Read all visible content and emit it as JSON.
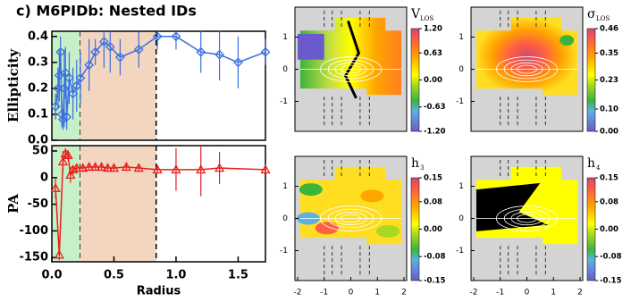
{
  "chart_data": [
    {
      "type": "errorline",
      "title": "c) M6PIDb: Nested IDs",
      "y_label": "Ellipticity",
      "color": "#3a6fe0",
      "xlim": [
        0,
        1.72
      ],
      "ylim": [
        0,
        0.42
      ],
      "yticks": [
        {
          "value": 0,
          "label": "0.0"
        },
        0.1,
        0.2,
        0.3,
        0.4
      ],
      "spans": [
        {
          "from": 0,
          "to": 0.23,
          "color": "#c8f0c8"
        },
        {
          "from": 0.23,
          "to": 0.84,
          "color": "#f3d6c0"
        }
      ],
      "x": [
        0.03,
        0.05,
        0.06,
        0.07,
        0.08,
        0.09,
        0.1,
        0.11,
        0.12,
        0.14,
        0.17,
        0.2,
        0.23,
        0.3,
        0.35,
        0.42,
        0.47,
        0.55,
        0.7,
        0.85,
        1.0,
        1.2,
        1.35,
        1.5,
        1.72
      ],
      "values": [
        0.13,
        0.2,
        0.25,
        0.34,
        0.1,
        0.08,
        0.2,
        0.26,
        0.09,
        0.24,
        0.18,
        0.21,
        0.24,
        0.29,
        0.34,
        0.38,
        0.36,
        0.32,
        0.35,
        0.4,
        0.4,
        0.34,
        0.33,
        0.3,
        0.34
      ],
      "errors": [
        0.05,
        0.08,
        0.1,
        0.06,
        0.05,
        0.04,
        0.15,
        0.1,
        0.05,
        0.1,
        0.1,
        0.1,
        0.1,
        0.1,
        0.05,
        0.1,
        0.1,
        0.07,
        0.07,
        0.05,
        0.05,
        0.08,
        0.1,
        0.1,
        0.05
      ],
      "marker": "diamond"
    },
    {
      "type": "errorline",
      "y_label": "PA",
      "x_label": "Radius",
      "color": "#e8201c",
      "xlim": [
        0,
        1.72
      ],
      "ylim": [
        -158,
        60
      ],
      "xticks": [
        {
          "value": 0,
          "label": "0.0"
        },
        0.5,
        {
          "value": 1,
          "label": "1.0"
        },
        1.5
      ],
      "yticks": [
        50,
        0,
        -50,
        -100,
        -150
      ],
      "spans": [
        {
          "from": 0,
          "to": 0.23,
          "color": "#c8f0c8"
        },
        {
          "from": 0.23,
          "to": 0.84,
          "color": "#f3d6c0"
        }
      ],
      "x": [
        0.03,
        0.06,
        0.09,
        0.11,
        0.13,
        0.15,
        0.17,
        0.2,
        0.25,
        0.3,
        0.35,
        0.4,
        0.45,
        0.5,
        0.6,
        0.7,
        0.85,
        1.0,
        1.2,
        1.35,
        1.72
      ],
      "values": [
        -20,
        -145,
        30,
        45,
        42,
        5,
        15,
        18,
        18,
        20,
        20,
        20,
        18,
        18,
        20,
        18,
        15,
        15,
        15,
        18,
        15
      ],
      "errors": [
        20,
        10,
        20,
        10,
        10,
        15,
        8,
        5,
        5,
        5,
        5,
        5,
        5,
        5,
        5,
        5,
        5,
        40,
        50,
        30,
        5
      ],
      "marker": "triangle"
    },
    {
      "type": "map",
      "label": "V",
      "label_sub": "LOS",
      "style": "velocity",
      "xlim": [
        -2.1,
        2.1
      ],
      "ylim": [
        -1.93,
        1.93
      ],
      "yticks": [
        1,
        0,
        -1
      ],
      "clim": [
        -1.2,
        1.2
      ],
      "cticks": [
        {
          "value": 1.2,
          "label": "1.20"
        },
        0.63,
        {
          "value": 0,
          "label": "0.00"
        },
        -0.63,
        {
          "value": -1.2,
          "label": "-1.20"
        }
      ]
    },
    {
      "type": "map",
      "label": "σ",
      "label_sub": "LOS",
      "style": "dispersion",
      "xlim": [
        -2.1,
        2.1
      ],
      "ylim": [
        -1.93,
        1.93
      ],
      "yticks": [
        1,
        0,
        -1
      ],
      "clim": [
        0,
        0.46
      ],
      "cticks": [
        0.46,
        0.35,
        0.23,
        {
          "value": 0.1,
          "label": "0.10"
        },
        {
          "value": 0,
          "label": "0.00"
        }
      ]
    },
    {
      "type": "map",
      "label": "h",
      "label_sub": "3",
      "style": "h3",
      "xlim": [
        -2.1,
        2.1
      ],
      "ylim": [
        -1.93,
        1.93
      ],
      "yticks": [
        1,
        0,
        -1
      ],
      "xticks": [
        -2,
        -1,
        0,
        1,
        2
      ],
      "clim": [
        -0.15,
        0.15
      ],
      "cticks": [
        0.15,
        0.08,
        {
          "value": 0,
          "label": "0.00"
        },
        -0.08,
        -0.15
      ]
    },
    {
      "type": "map",
      "label": "h",
      "label_sub": "4",
      "style": "h4",
      "xlim": [
        -2.1,
        2.1
      ],
      "ylim": [
        -1.93,
        1.93
      ],
      "yticks": [
        1,
        0,
        -1
      ],
      "xticks": [
        -2,
        -1,
        0,
        1,
        2
      ],
      "clim": [
        -0.15,
        0.15
      ],
      "cticks": [
        0.15,
        0.08,
        {
          "value": 0,
          "label": "0.00"
        },
        -0.08,
        -0.15
      ]
    }
  ]
}
